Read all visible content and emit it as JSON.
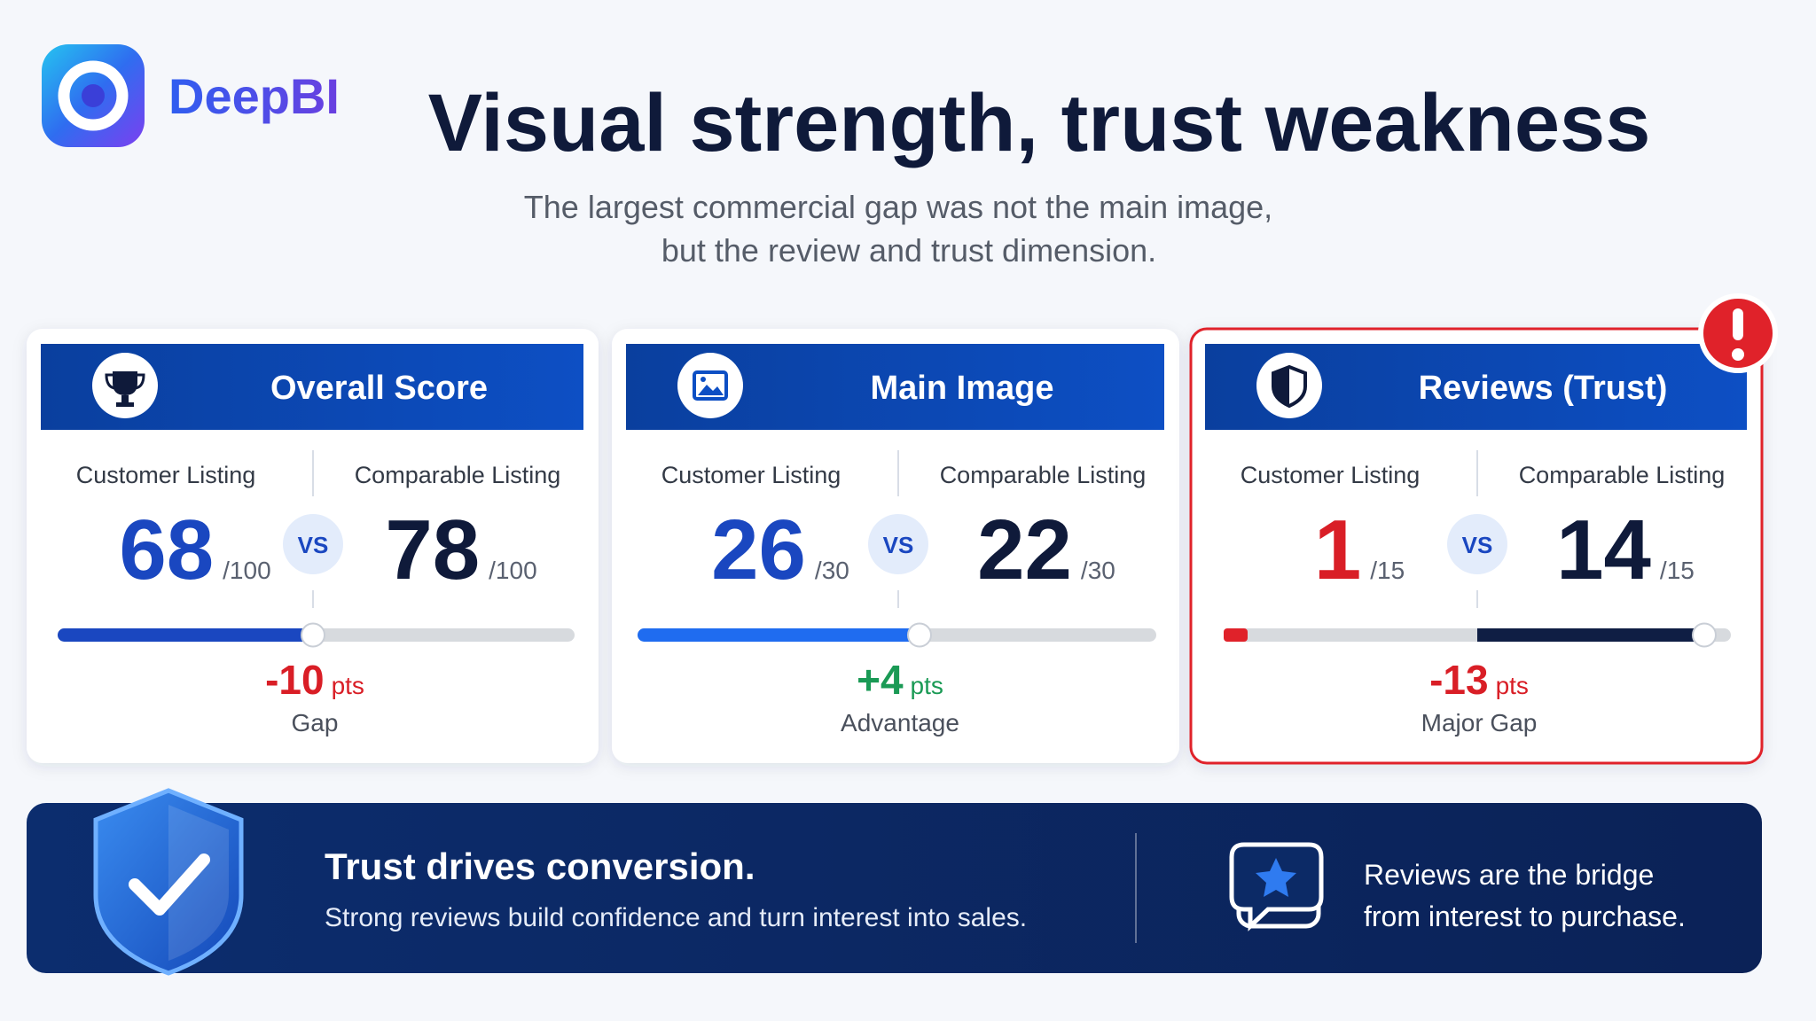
{
  "brand": "DeepBI",
  "header": {
    "title": "Visual strength, trust weakness",
    "subtitle": [
      "The largest commercial gap was not the main image,",
      "but the review and trust dimension."
    ]
  },
  "cards": [
    {
      "title": "Overall Score",
      "customer_label": "Customer Listing",
      "customer_score": "68",
      "customer_max": "/100",
      "vs": "VS",
      "comparable_label": "Comparable Listing",
      "comparable_score": "78",
      "comparable_max": "/100",
      "gap_value": "-10",
      "gap_unit": "pts",
      "gap_label": "Gap"
    },
    {
      "title": "Main Image",
      "customer_label": "Customer Listing",
      "customer_score": "26",
      "customer_max": "/30",
      "vs": "VS",
      "comparable_label": "Comparable Listing",
      "comparable_score": "22",
      "comparable_max": "/30",
      "gap_value": "+4",
      "gap_unit": "pts",
      "gap_label": "Advantage"
    },
    {
      "title": "Reviews (Trust)",
      "customer_label": "Customer Listing",
      "customer_score": "1",
      "customer_max": "/15",
      "vs": "VS",
      "comparable_label": "Comparable Listing",
      "comparable_score": "14",
      "comparable_max": "/15",
      "gap_value": "-13",
      "gap_unit": "pts",
      "gap_label": "Major Gap"
    }
  ],
  "banner": {
    "heading": "Trust drives conversion.",
    "text": "Strong reviews build confidence and turn interest into sales.",
    "note": [
      "Reviews are the bridge",
      "from interest to purchase."
    ]
  }
}
